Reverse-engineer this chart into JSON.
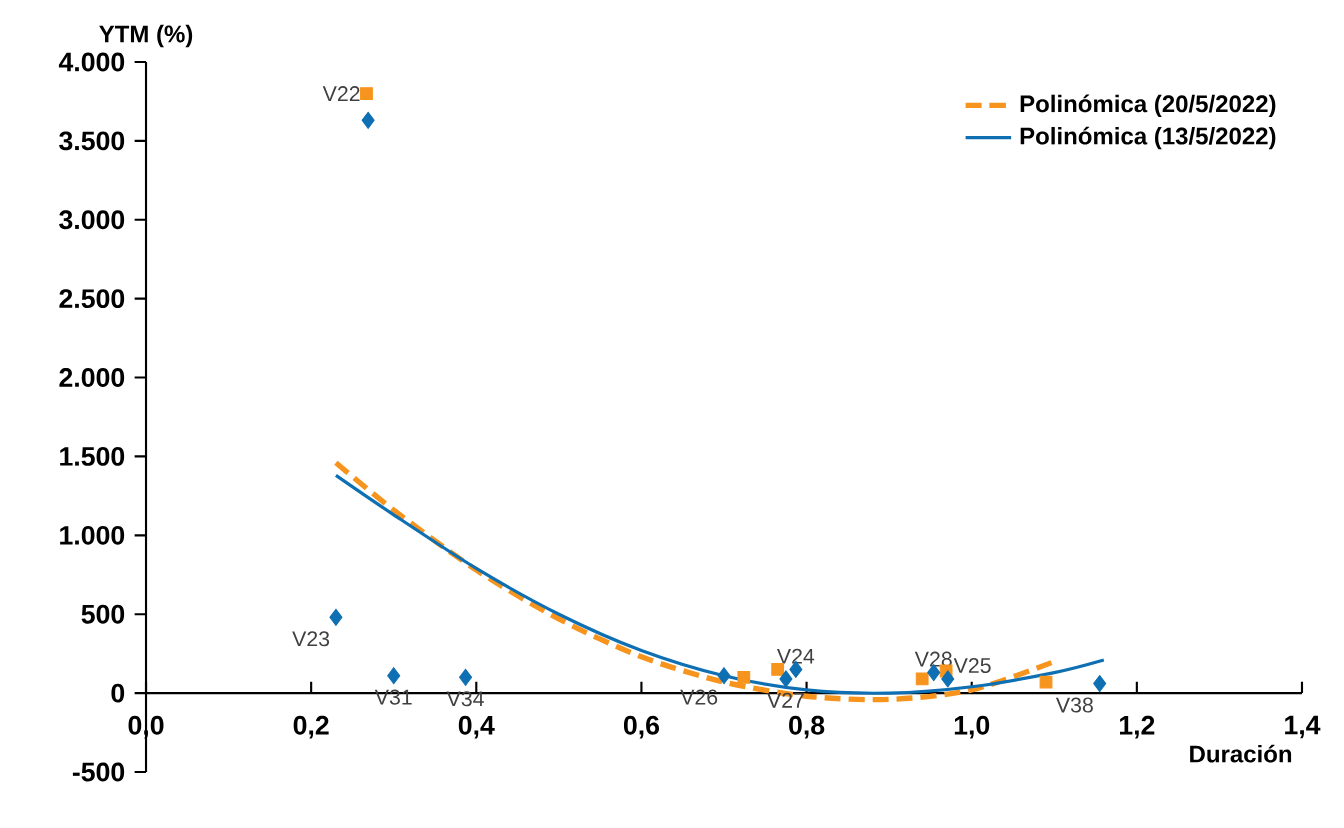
{
  "chart_data": {
    "type": "scatter",
    "ylabel": "YTM (%)",
    "xlabel": "Duración",
    "xlim": [
      0,
      1.4
    ],
    "ylim": [
      -500,
      4000
    ],
    "xticks": [
      {
        "value": 0,
        "label": "0,0"
      },
      {
        "value": 0.2,
        "label": "0,2"
      },
      {
        "value": 0.4,
        "label": "0,4"
      },
      {
        "value": 0.6,
        "label": "0,6"
      },
      {
        "value": 0.8,
        "label": "0,8"
      },
      {
        "value": 1.0,
        "label": "1,0"
      },
      {
        "value": 1.2,
        "label": "1,2"
      },
      {
        "value": 1.4,
        "label": "1,4"
      }
    ],
    "yticks": [
      -500,
      0,
      500,
      {
        "value": 1000,
        "label": "1.000"
      },
      {
        "value": 1500,
        "label": "1.500"
      },
      {
        "value": 2000,
        "label": "2.000"
      },
      {
        "value": 2500,
        "label": "2.500"
      },
      {
        "value": 3000,
        "label": "3.000"
      },
      {
        "value": 3500,
        "label": "3.500"
      },
      {
        "value": 4000,
        "label": "4.000"
      }
    ],
    "grid": false,
    "legend": "top right",
    "series": [
      {
        "color": "#f7941d",
        "marker": "square",
        "x": [
          0.267,
          0.724,
          0.765,
          0.94,
          0.969,
          1.09
        ],
        "values": [
          3800,
          100,
          150,
          90,
          140,
          70
        ]
      },
      {
        "color": "#0e6fb3",
        "marker": "diamond",
        "x": [
          0.269,
          0.23,
          0.3,
          0.387,
          0.7,
          0.775,
          0.787,
          0.954,
          0.971,
          1.155
        ],
        "values": [
          3630,
          480,
          110,
          100,
          110,
          90,
          150,
          130,
          90,
          60
        ]
      },
      {
        "type": "line",
        "name": "Polinómica (20/5/2022)",
        "color": "#f7941d",
        "line_style": "dashed",
        "marker": "none",
        "x": [
          0.23,
          0.3,
          0.4,
          0.5,
          0.6,
          0.7,
          0.8,
          0.9,
          1.0,
          1.1
        ],
        "values": [
          1460,
          1160,
          780,
          470,
          230,
          70,
          -20,
          -40,
          20,
          200
        ]
      },
      {
        "type": "line",
        "name": "Polinómica (13/5/2022)",
        "color": "#0e6fb3",
        "line_style": "solid",
        "marker": "none",
        "x": [
          0.23,
          0.3,
          0.4,
          0.5,
          0.6,
          0.7,
          0.8,
          0.9,
          1.0,
          1.1,
          1.16
        ],
        "values": [
          1380,
          1130,
          790,
          500,
          270,
          110,
          20,
          0,
          40,
          130,
          210
        ]
      }
    ],
    "annotations": [
      {
        "text": "V22",
        "x": 0.267,
        "y": 3800
      },
      {
        "text": "V23",
        "x": 0.23,
        "y": 480
      },
      {
        "text": "V31",
        "x": 0.3,
        "y": 110
      },
      {
        "text": "V34",
        "x": 0.387,
        "y": 100
      },
      {
        "text": "V26",
        "x": 0.7,
        "y": 110
      },
      {
        "text": "V27",
        "x": 0.775,
        "y": 90
      },
      {
        "text": "V24",
        "x": 0.787,
        "y": 150
      },
      {
        "text": "V28",
        "x": 0.954,
        "y": 130
      },
      {
        "text": "V25",
        "x": 0.971,
        "y": 90
      },
      {
        "text": "V38",
        "x": 1.155,
        "y": 60
      }
    ]
  }
}
